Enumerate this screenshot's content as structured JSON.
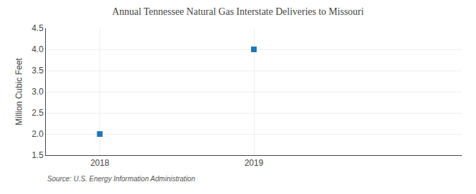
{
  "chart_data": {
    "type": "scatter",
    "title": "Annual Tennessee Natural Gas Interstate Deliveries to Missouri",
    "ylabel": "Million Cubic Feet",
    "annotations": [
      "Source: U.S. Energy Information Administration"
    ],
    "x": [
      2018,
      2019
    ],
    "values": [
      2.0,
      4.0
    ],
    "marker": "square",
    "xlim": [
      2017.65,
      2020.35
    ],
    "xticks": [
      2018,
      2019
    ],
    "ylim": [
      1.5,
      4.5
    ],
    "yticks": [
      1.5,
      {
        "value": 2.0,
        "label": "2.0"
      },
      2.5,
      {
        "value": 3.0,
        "label": "3.0"
      },
      3.5,
      {
        "value": 4.0,
        "label": "4.0"
      },
      4.5
    ],
    "grid": true
  }
}
